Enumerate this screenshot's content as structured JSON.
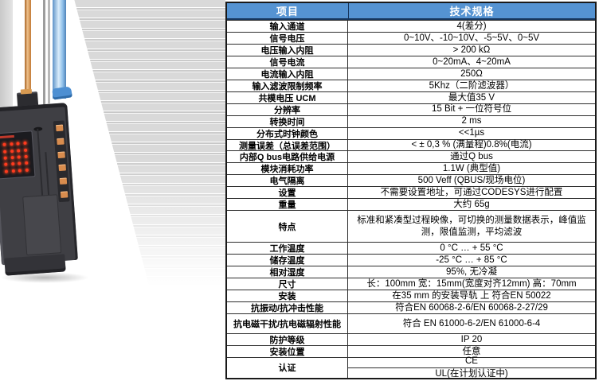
{
  "photo": {
    "module_name": "analog-input-io-module",
    "cables": [
      "orange-signal-cable",
      "blue-signal-cable"
    ],
    "led_color": "#ff3a1e",
    "terminal_color": "#d88c4e",
    "clip_color": "#4d8fd2"
  },
  "table": {
    "header_bg": "#5593d2",
    "headers": [
      "项目",
      "技术规格"
    ],
    "rows": [
      {
        "label": "输入通道",
        "value": "4(差分)"
      },
      {
        "label": "信号电压",
        "value": "0~10V、-10~10V、-5~5V、0~5V"
      },
      {
        "label": "电压输入内阻",
        "value": "> 200 kΩ"
      },
      {
        "label": "信号电流",
        "value": "0~20mA、4~20mA"
      },
      {
        "label": "电流输入内阻",
        "value": "250Ω"
      },
      {
        "label": "输入滤波限制频率",
        "value": "5Khz（二阶滤波器）"
      },
      {
        "label": "共模电压 UCM",
        "value": "最大值35 V"
      },
      {
        "label": "分辨率",
        "value": "15 Bit + 一位符号位"
      },
      {
        "label": "转换时间",
        "value": "2 ms"
      },
      {
        "label": "分布式时钟颜色",
        "value": "<<1µs"
      },
      {
        "label": "测量误差（总误差范围）",
        "value": "< ± 0,3 % (满量程)0.8%(电流)"
      },
      {
        "label": "内部Q bus电路供给电源",
        "value": "通过Q bus"
      },
      {
        "label": "模块消耗功率",
        "value": "1.1W (典型值)"
      },
      {
        "label": "电气隔离",
        "value": "500 Veff (QBUS/现场电位)"
      },
      {
        "label": "设置",
        "value": "不需要设置地址，可通过CODESYS进行配置"
      },
      {
        "label": "重量",
        "value": "大约 65g"
      },
      {
        "label": "特点",
        "value": "标准和紧凑型过程映像，可切换的测量数据表示，峰值监测，限值监测，平均滤波"
      },
      {
        "label": "工作温度",
        "value": "0 °C … + 55 °C"
      },
      {
        "label": "储存温度",
        "value": "-25 °C … + 85 °C"
      },
      {
        "label": "相对湿度",
        "value": "95%, 无冷凝"
      },
      {
        "label": "尺寸",
        "value": "长：100mm 宽：15mm(宽度对齐12mm) 高：70mm"
      },
      {
        "label": "安装",
        "value": "在35 mm 的安装导轨 上 符合EN 50022"
      },
      {
        "label": "抗振动/抗冲击性能",
        "value": "符合EN 60068-2-6/EN 60068-2-27/29"
      },
      {
        "label": "抗电磁干扰/抗电磁辐射性能",
        "value": "符合 EN 61000-6-2/EN 61000-6-4"
      },
      {
        "label": "防护等级",
        "value": "IP 20"
      },
      {
        "label": "安装位置",
        "value": "任意"
      },
      {
        "label": "认证",
        "values": [
          "CE",
          "UL(在计划认证中)"
        ]
      }
    ]
  }
}
